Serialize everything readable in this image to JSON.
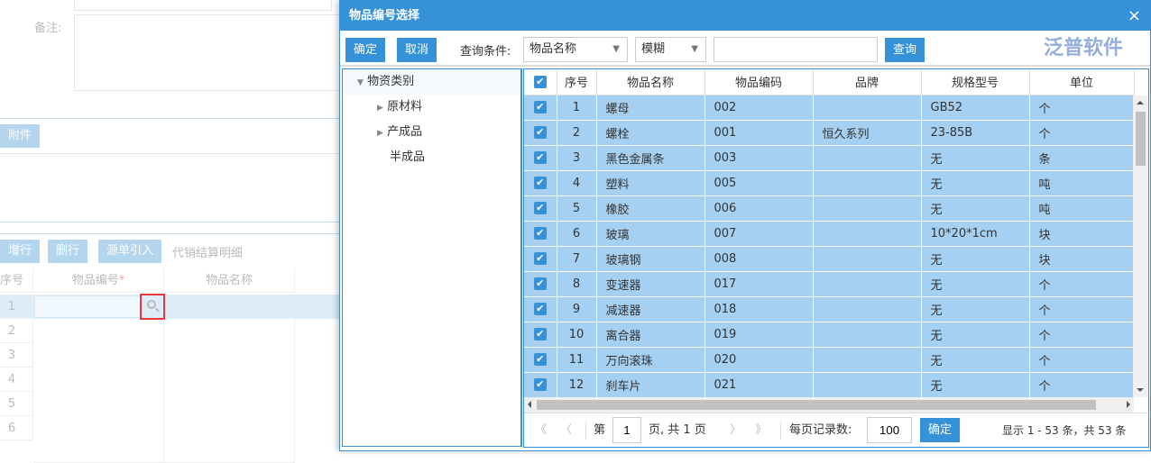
{
  "background": {
    "remark_label": "备注:",
    "attach_button": "附件",
    "buttons": [
      "增行",
      "删行",
      "源单引入"
    ],
    "detail_title": "代销结算明细",
    "columns": [
      "序号",
      "物品编号",
      "物品名称"
    ],
    "required_mark": "*",
    "rows": [
      "1",
      "2",
      "3",
      "4",
      "5",
      "6"
    ]
  },
  "dialog": {
    "title": "物品编号选择",
    "close": "×",
    "toolbar": {
      "confirm": "确定",
      "cancel": "取消",
      "query_label": "查询条件:",
      "field_select": "物品名称",
      "mode_select": "模糊",
      "search_value": "",
      "search_button": "查询"
    },
    "tree": {
      "root": "物资类别",
      "children": [
        {
          "label": "原材料",
          "expandable": true
        },
        {
          "label": "产成品",
          "expandable": true
        },
        {
          "label": "半成品",
          "expandable": false
        }
      ]
    },
    "grid": {
      "columns": [
        "序号",
        "物品名称",
        "物品编码",
        "品牌",
        "规格型号",
        "单位"
      ],
      "rows": [
        [
          "1",
          "螺母",
          "002",
          "",
          "GB52",
          "个"
        ],
        [
          "2",
          "螺栓",
          "001",
          "恒久系列",
          "23-85B",
          "个"
        ],
        [
          "3",
          "黑色金属条",
          "003",
          "",
          "无",
          "条"
        ],
        [
          "4",
          "塑料",
          "005",
          "",
          "无",
          "吨"
        ],
        [
          "5",
          "橡胶",
          "006",
          "",
          "无",
          "吨"
        ],
        [
          "6",
          "玻璃",
          "007",
          "",
          "10*20*1cm",
          "块"
        ],
        [
          "7",
          "玻璃钢",
          "008",
          "",
          "无",
          "块"
        ],
        [
          "8",
          "变速器",
          "017",
          "",
          "无",
          "个"
        ],
        [
          "9",
          "减速器",
          "018",
          "",
          "无",
          "个"
        ],
        [
          "10",
          "离合器",
          "019",
          "",
          "无",
          "个"
        ],
        [
          "11",
          "万向滚珠",
          "020",
          "",
          "无",
          "个"
        ],
        [
          "12",
          "刹车片",
          "021",
          "",
          "无",
          "个"
        ]
      ],
      "all_checked": true
    },
    "pager": {
      "first": "《",
      "prev": "〈",
      "page_prefix": "第",
      "page": "1",
      "page_suffix": "页, 共 1 页",
      "next": "〉",
      "last": "》",
      "per_page_label": "每页记录数:",
      "per_page": "100",
      "confirm": "确定",
      "summary": "显示 1 - 53 条，共 53 条"
    },
    "watermark": "泛普软件"
  },
  "colors": {
    "accent": "#3592d8",
    "selected_row": "#a6d0f1"
  }
}
